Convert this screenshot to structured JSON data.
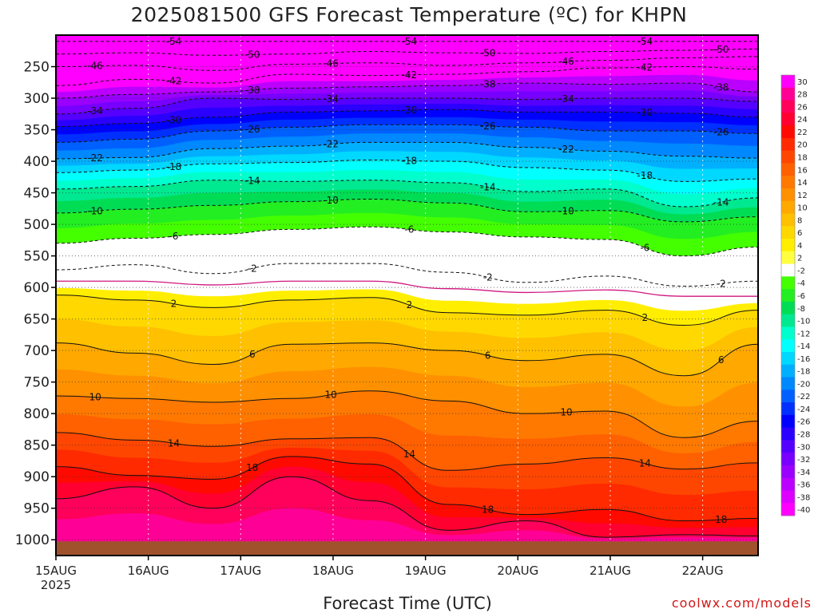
{
  "chart_data": {
    "type": "heatmap",
    "title": "2025081500 GFS Forecast Temperature (ºC) for KHPN",
    "xlabel": "Forecast Time (UTC)",
    "ylabel": "",
    "credit": "coolwx.com/models",
    "x_start_label": "15AUG",
    "x_start_year": "2025",
    "x_ticks": [
      "15AUG",
      "16AUG",
      "17AUG",
      "18AUG",
      "19AUG",
      "20AUG",
      "21AUG",
      "22AUG"
    ],
    "xlim_days": [
      0,
      7.6
    ],
    "y_axis": "pressure (hPa), inverted",
    "y_ticks": [
      "250",
      "300",
      "350",
      "400",
      "450",
      "500",
      "550",
      "600",
      "650",
      "700",
      "750",
      "800",
      "850",
      "900",
      "950",
      "1000"
    ],
    "ylim": [
      1025,
      200
    ],
    "grid": true,
    "colorbar_levels": [
      "30",
      "28",
      "26",
      "24",
      "22",
      "20",
      "18",
      "16",
      "14",
      "12",
      "10",
      "8",
      "6",
      "4",
      "2",
      "-2",
      "-4",
      "-6",
      "-8",
      "-10",
      "-12",
      "-14",
      "-16",
      "-18",
      "-20",
      "-22",
      "-24",
      "-26",
      "-28",
      "-30",
      "-32",
      "-34",
      "-36",
      "-38",
      "-40"
    ],
    "colorbar_colors": [
      "#ff00ff",
      "#ff0096",
      "#ff005a",
      "#ff0030",
      "#ff0a00",
      "#ff2a00",
      "#ff4600",
      "#ff6000",
      "#ff7800",
      "#ff9000",
      "#ffa800",
      "#ffc000",
      "#ffd800",
      "#ffee00",
      "#ffff40",
      "#ffffff",
      "#44ff00",
      "#22ee22",
      "#00dd55",
      "#00e890",
      "#00ffcc",
      "#00ffff",
      "#00d8ff",
      "#00b0ff",
      "#0088ff",
      "#0060ff",
      "#0030ff",
      "#0000ff",
      "#2a00ff",
      "#5500ff",
      "#7700ff",
      "#9900ff",
      "#bb00ff",
      "#dd00ff",
      "#ff00ff"
    ],
    "isotherms": [
      {
        "temp": -54,
        "label": "-54",
        "p": [
          210,
          210,
          210,
          210,
          210,
          210,
          210,
          210,
          210,
          210
        ]
      },
      {
        "temp": -50,
        "label": "-50",
        "p": [
          230,
          228,
          232,
          230,
          226,
          228,
          229,
          226,
          224,
          222
        ]
      },
      {
        "temp": -46,
        "label": "-46",
        "p": [
          250,
          248,
          256,
          246,
          244,
          248,
          244,
          240,
          236,
          234
        ]
      },
      {
        "temp": -42,
        "label": "-42",
        "p": [
          280,
          270,
          276,
          262,
          264,
          262,
          258,
          252,
          250,
          254
        ]
      },
      {
        "temp": -38,
        "label": "-38",
        "p": [
          300,
          294,
          290,
          284,
          282,
          280,
          276,
          278,
          276,
          290
        ]
      },
      {
        "temp": -34,
        "label": "-34",
        "p": [
          325,
          316,
          300,
          302,
          300,
          300,
          302,
          300,
          300,
          305
        ]
      },
      {
        "temp": -30,
        "label": "-30",
        "p": [
          345,
          340,
          330,
          322,
          320,
          318,
          322,
          322,
          324,
          330
        ]
      },
      {
        "temp": -26,
        "label": "-26",
        "p": [
          370,
          365,
          352,
          346,
          342,
          342,
          346,
          352,
          352,
          356
        ]
      },
      {
        "temp": -22,
        "label": "-22",
        "p": [
          396,
          394,
          380,
          376,
          370,
          370,
          378,
          384,
          392,
          395
        ]
      },
      {
        "temp": -18,
        "label": "-18",
        "p": [
          418,
          414,
          404,
          402,
          398,
          400,
          410,
          414,
          432,
          428
        ]
      },
      {
        "temp": -14,
        "label": "-14",
        "p": [
          444,
          440,
          430,
          432,
          430,
          434,
          448,
          444,
          472,
          458
        ]
      },
      {
        "temp": -10,
        "label": "-10",
        "p": [
          482,
          476,
          470,
          464,
          460,
          466,
          480,
          478,
          496,
          488
        ]
      },
      {
        "temp": -6,
        "label": "-6",
        "p": [
          530,
          522,
          516,
          508,
          504,
          512,
          520,
          524,
          550,
          536
        ]
      },
      {
        "temp": -2,
        "label": "-2",
        "p": [
          572,
          564,
          578,
          562,
          562,
          576,
          592,
          582,
          598,
          590
        ]
      },
      {
        "temp": 0,
        "label": "",
        "p": [
          590,
          590,
          596,
          590,
          590,
          602,
          608,
          604,
          614,
          614
        ]
      },
      {
        "temp": 2,
        "label": "2",
        "p": [
          612,
          620,
          632,
          620,
          616,
          640,
          644,
          636,
          660,
          636
        ]
      },
      {
        "temp": 6,
        "label": "6",
        "p": [
          688,
          704,
          722,
          690,
          688,
          700,
          716,
          706,
          740,
          690
        ]
      },
      {
        "temp": 10,
        "label": "10",
        "p": [
          772,
          776,
          782,
          776,
          764,
          780,
          800,
          796,
          838,
          812
        ]
      },
      {
        "temp": 14,
        "label": "14",
        "p": [
          830,
          842,
          852,
          840,
          838,
          890,
          880,
          870,
          888,
          878
        ]
      },
      {
        "temp": 18,
        "label": "18",
        "p": [
          884,
          898,
          904,
          868,
          880,
          944,
          960,
          952,
          970,
          966
        ]
      },
      {
        "temp": 22,
        "label": "",
        "p": [
          935,
          916,
          950,
          900,
          938,
          985,
          970,
          996,
          992,
          994
        ]
      }
    ],
    "series_x_days": [
      0.0,
      0.85,
      1.7,
      2.55,
      3.4,
      4.25,
      5.1,
      5.95,
      6.8,
      7.6
    ],
    "surface_pressure": 1000
  }
}
